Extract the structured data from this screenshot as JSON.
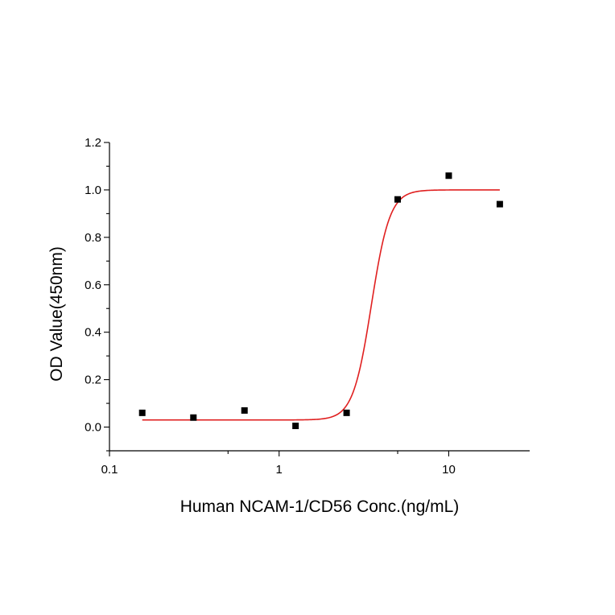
{
  "chart_data": {
    "type": "scatter",
    "title": "",
    "xlabel": "Human NCAM-1/CD56 Conc.(ng/mL)",
    "ylabel": "OD Value(450nm)",
    "x_scale": "log",
    "xlim": [
      0.1,
      30
    ],
    "ylim": [
      -0.1,
      1.2
    ],
    "x_ticks": [
      {
        "value": 0.1,
        "label": "0.1"
      },
      {
        "value": 1,
        "label": "1"
      },
      {
        "value": 10,
        "label": "10"
      }
    ],
    "y_ticks": [
      {
        "value": 0.0,
        "label": "0.0"
      },
      {
        "value": 0.2,
        "label": "0.2"
      },
      {
        "value": 0.4,
        "label": "0.4"
      },
      {
        "value": 0.6,
        "label": "0.6"
      },
      {
        "value": 0.8,
        "label": "0.8"
      },
      {
        "value": 1.0,
        "label": "1.0"
      },
      {
        "value": 1.2,
        "label": "1.2"
      }
    ],
    "grid": false,
    "series": [
      {
        "type": "scatter",
        "marker": "square",
        "color": "#000000",
        "x": [
          0.156,
          0.3125,
          0.625,
          1.25,
          2.5,
          5,
          10,
          20
        ],
        "y": [
          0.06,
          0.04,
          0.07,
          0.005,
          0.06,
          0.96,
          1.06,
          0.94
        ]
      },
      {
        "type": "line",
        "color": "#e02020",
        "fit": "four-parameter logistic",
        "bottom": 0.03,
        "top": 1.0,
        "ec50": 3.5,
        "hill": 8,
        "x_range": [
          0.156,
          20
        ]
      }
    ]
  }
}
